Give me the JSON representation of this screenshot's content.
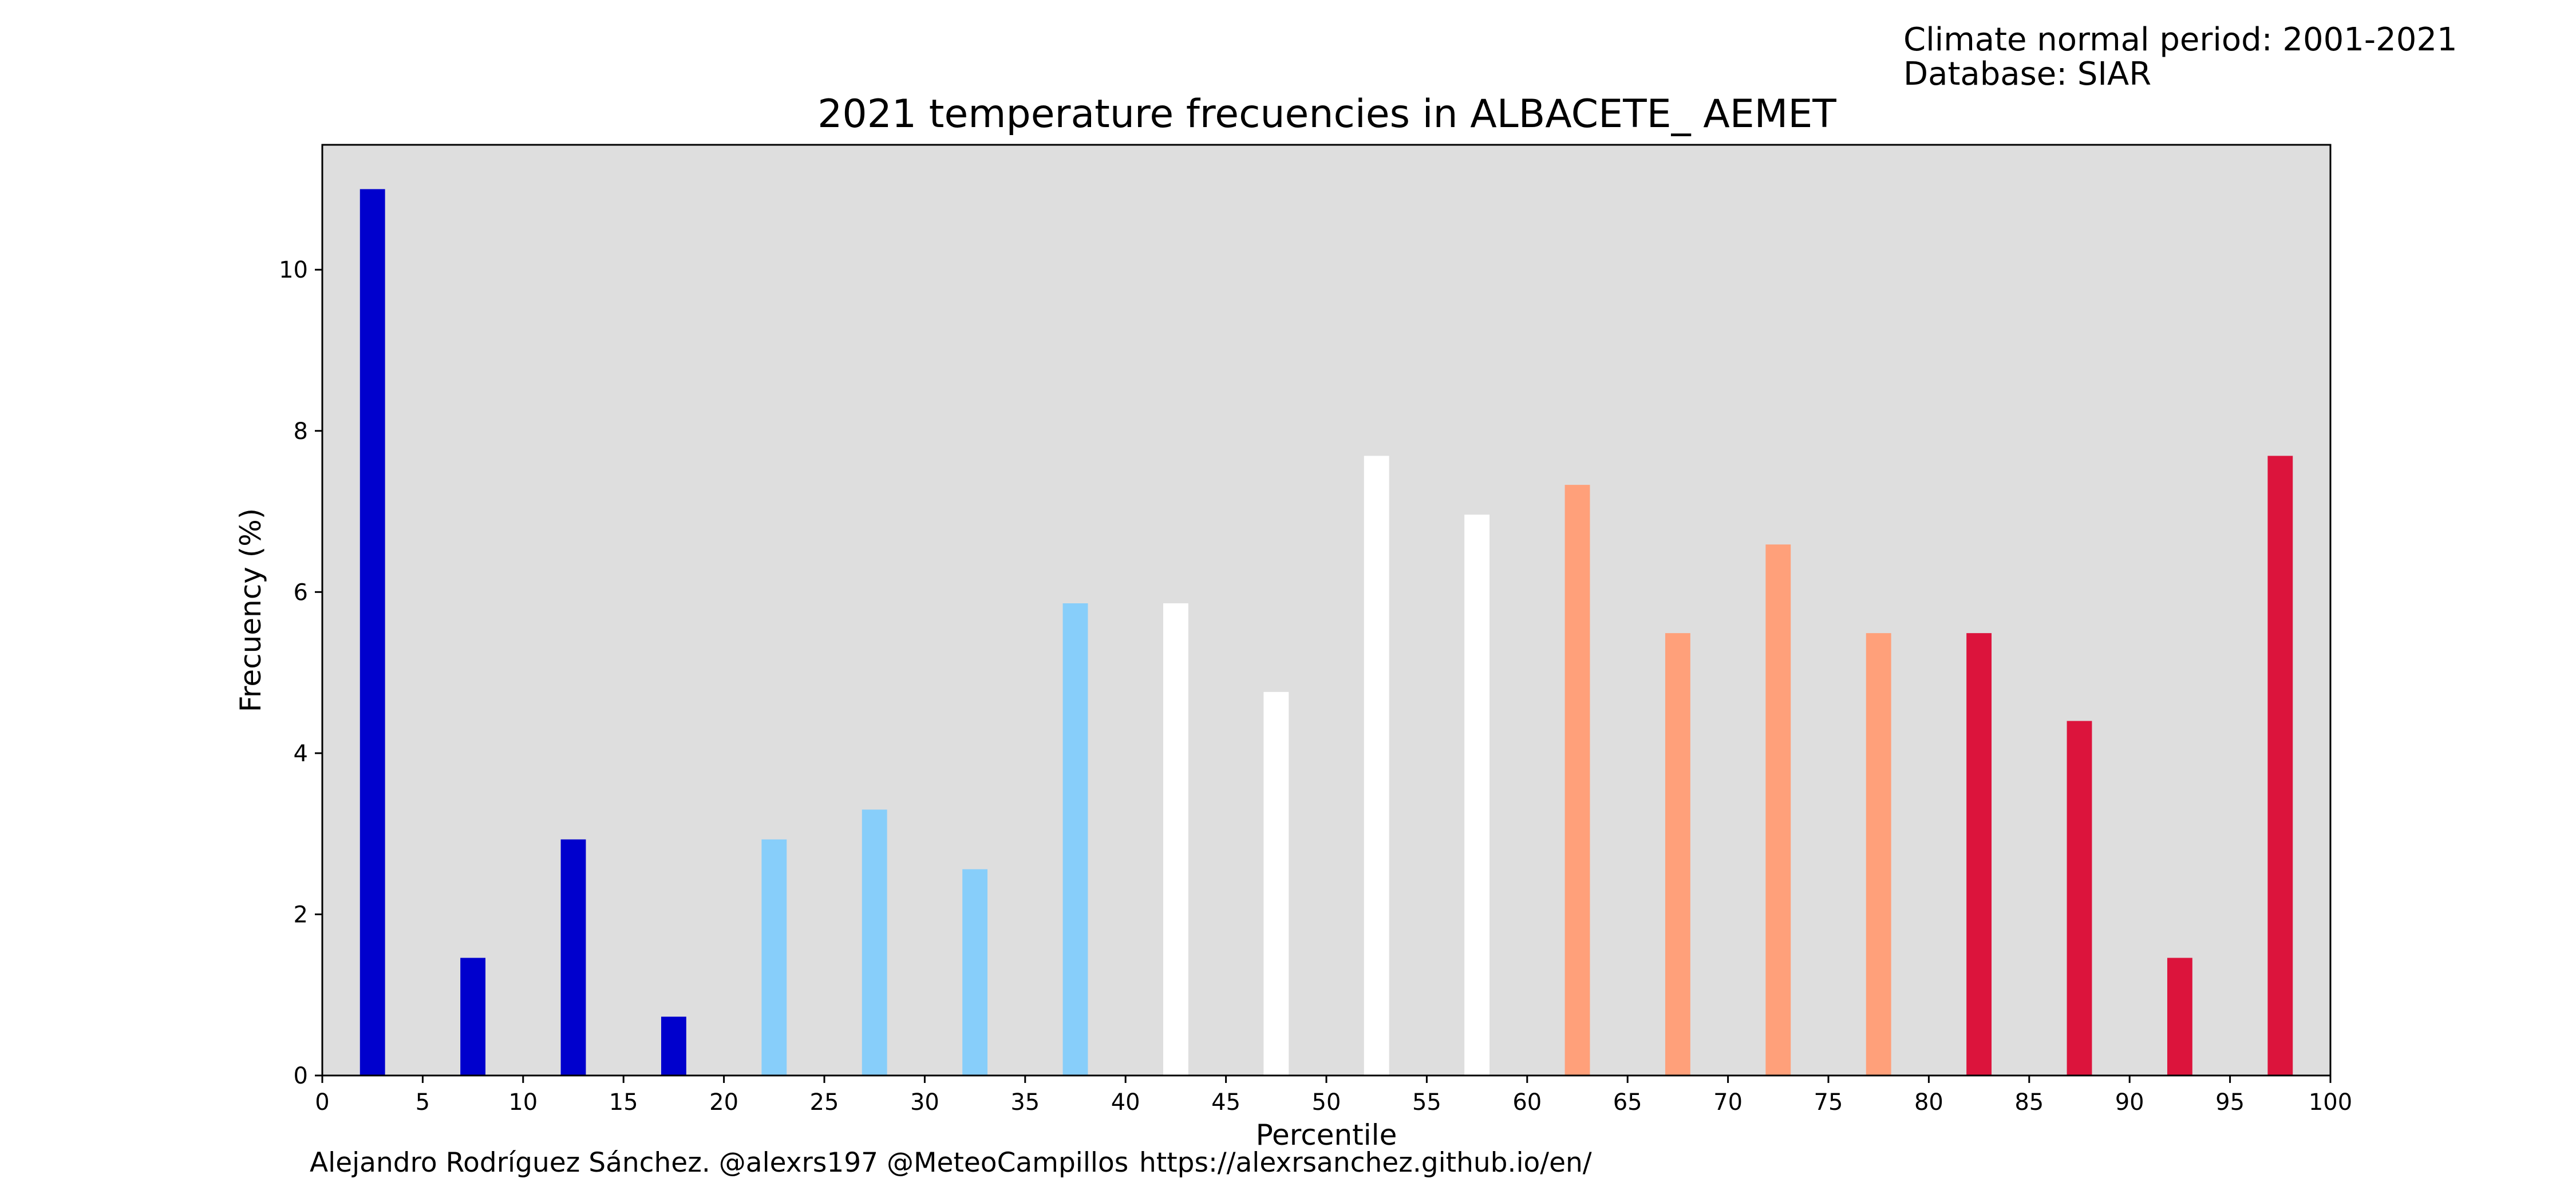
{
  "header_note": {
    "period": "Climate normal period: 2001-2021",
    "database": "Database: SIAR"
  },
  "credits": {
    "author": "Alejandro Rodríguez Sánchez. @alexrs197 @MeteoCampillos",
    "url": "https://alexrsanchez.github.io/en/"
  },
  "colors": {
    "plot_background": "#dedede",
    "very_cold": "#0000cd",
    "cold": "#87cefa",
    "normal": "#ffffff",
    "warm": "#ffa07a",
    "very_warm": "#dc143c"
  },
  "chart_data": {
    "type": "bar",
    "title": "2021 temperature frecuencies in ALBACETE_ AEMET",
    "xlabel": "Percentile",
    "ylabel": "Frecuency (%)",
    "xlim": [
      0,
      100
    ],
    "ylim": [
      0,
      11.55
    ],
    "xticks": [
      0,
      5,
      10,
      15,
      20,
      25,
      30,
      35,
      40,
      45,
      50,
      55,
      60,
      65,
      70,
      75,
      80,
      85,
      90,
      95,
      100
    ],
    "yticks": [
      0,
      2,
      4,
      6,
      8,
      10
    ],
    "grid": false,
    "legend": "none",
    "bar_width": 1.25,
    "x": [
      2.5,
      7.5,
      12.5,
      17.5,
      22.5,
      27.5,
      32.5,
      37.5,
      42.5,
      47.5,
      52.5,
      57.5,
      62.5,
      67.5,
      72.5,
      77.5,
      82.5,
      87.5,
      92.5,
      97.5
    ],
    "values": [
      11.0,
      1.46,
      2.93,
      0.73,
      2.93,
      3.3,
      2.56,
      5.86,
      5.86,
      4.76,
      7.69,
      6.96,
      7.33,
      5.49,
      6.59,
      5.49,
      5.49,
      4.4,
      1.46,
      7.69
    ],
    "bar_colors": [
      "#0000cd",
      "#0000cd",
      "#0000cd",
      "#0000cd",
      "#87cefa",
      "#87cefa",
      "#87cefa",
      "#87cefa",
      "#ffffff",
      "#ffffff",
      "#ffffff",
      "#ffffff",
      "#ffa07a",
      "#ffa07a",
      "#ffa07a",
      "#ffa07a",
      "#dc143c",
      "#dc143c",
      "#dc143c",
      "#dc143c"
    ]
  }
}
